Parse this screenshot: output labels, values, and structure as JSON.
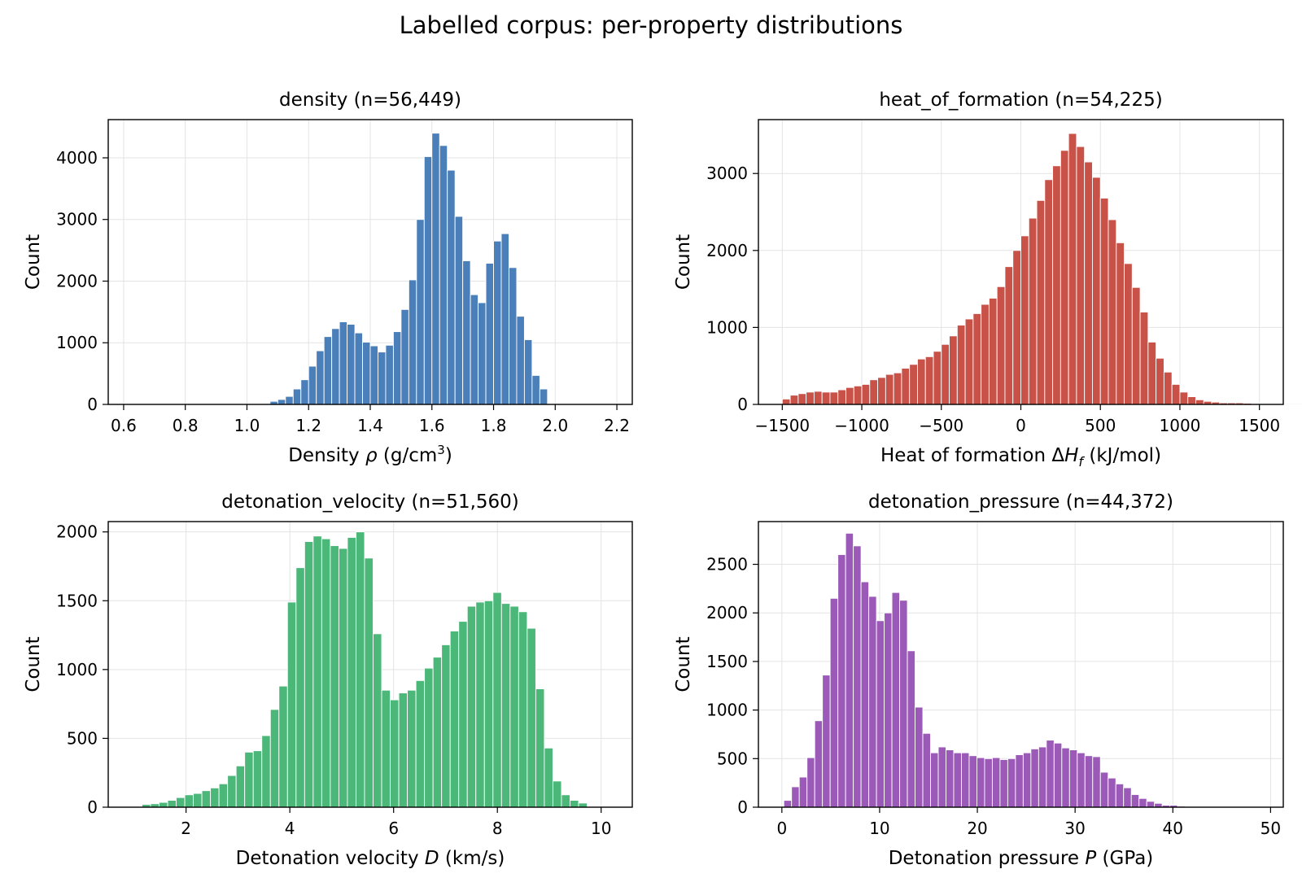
{
  "figure": {
    "title": "Labelled corpus: per-property distributions"
  },
  "chart_data": [
    {
      "type": "bar",
      "title": "density  (n=56,449)",
      "xlabel_parts": [
        "Density ",
        "ρ",
        " (g/cm",
        "3",
        ")"
      ],
      "ylabel": "Count",
      "color": "#4a7fb9",
      "xlim": [
        0.55,
        2.25
      ],
      "ylim": [
        0,
        4620
      ],
      "xticks": [
        0.6,
        0.8,
        1.0,
        1.2,
        1.4,
        1.6,
        1.8,
        2.0,
        2.2
      ],
      "xtick_labels": [
        "0.6",
        "0.8",
        "1.0",
        "1.2",
        "1.4",
        "1.6",
        "1.8",
        "2.0",
        "2.2"
      ],
      "yticks": [
        0,
        1000,
        2000,
        3000,
        4000
      ],
      "ytick_labels": [
        "0",
        "1000",
        "2000",
        "3000",
        "4000"
      ],
      "bins": {
        "start": 1.05,
        "width": 0.025
      },
      "values": [
        10,
        50,
        80,
        130,
        250,
        400,
        620,
        870,
        1100,
        1230,
        1340,
        1300,
        1160,
        1010,
        950,
        850,
        960,
        1180,
        1540,
        2020,
        3000,
        4020,
        4400,
        4200,
        3800,
        3050,
        2330,
        1780,
        1650,
        2290,
        2650,
        2770,
        2220,
        1430,
        1050,
        470,
        250,
        10
      ]
    },
    {
      "type": "bar",
      "title": "heat_of_formation  (n=54,225)",
      "xlabel_parts": [
        "Heat of formation Δ",
        "H",
        "f",
        " (kJ/mol)"
      ],
      "ylabel": "Count",
      "color": "#c85248",
      "xlim": [
        -1650,
        1650
      ],
      "ylim": [
        0,
        3700
      ],
      "xticks": [
        -1500,
        -1000,
        -500,
        0,
        500,
        1000,
        1500
      ],
      "xtick_labels": [
        "−1500",
        "−1000",
        "−500",
        "0",
        "500",
        "1000",
        "1500"
      ],
      "yticks": [
        0,
        1000,
        2000,
        3000
      ],
      "ytick_labels": [
        "0",
        "1000",
        "2000",
        "3000"
      ],
      "bins": {
        "start": -1500,
        "width": 50
      },
      "values": [
        70,
        120,
        140,
        160,
        170,
        160,
        160,
        190,
        220,
        240,
        260,
        320,
        350,
        390,
        410,
        470,
        520,
        590,
        620,
        690,
        780,
        890,
        1030,
        1110,
        1180,
        1300,
        1380,
        1530,
        1790,
        2000,
        2190,
        2420,
        2650,
        2920,
        3100,
        3300,
        3520,
        3350,
        3150,
        2950,
        2680,
        2400,
        2100,
        1830,
        1520,
        1200,
        810,
        600,
        420,
        260,
        160,
        100,
        60,
        40,
        30,
        20,
        20,
        20,
        15,
        10,
        10,
        10,
        10,
        10,
        10,
        10
      ]
    },
    {
      "type": "bar",
      "title": "detonation_velocity  (n=51,560)",
      "xlabel_parts": [
        "Detonation velocity ",
        "D",
        " (km/s)"
      ],
      "ylabel": "Count",
      "color": "#4bb778",
      "xlim": [
        0.5,
        10.6
      ],
      "ylim": [
        0,
        2075
      ],
      "xticks": [
        2,
        4,
        6,
        8,
        10
      ],
      "xtick_labels": [
        "2",
        "4",
        "6",
        "8",
        "10"
      ],
      "yticks": [
        0,
        500,
        1000,
        1500,
        2000
      ],
      "ytick_labels": [
        "0",
        "500",
        "1000",
        "1500",
        "2000"
      ],
      "bins": {
        "start": 1.15,
        "width": 0.165
      },
      "values": [
        20,
        25,
        35,
        50,
        70,
        90,
        100,
        120,
        140,
        170,
        230,
        300,
        400,
        410,
        520,
        710,
        880,
        1490,
        1740,
        1930,
        1970,
        1950,
        1900,
        1880,
        1960,
        2000,
        1810,
        1260,
        850,
        780,
        830,
        850,
        920,
        1010,
        1090,
        1180,
        1280,
        1350,
        1460,
        1490,
        1500,
        1560,
        1480,
        1460,
        1420,
        1300,
        860,
        430,
        190,
        90,
        50,
        30
      ]
    },
    {
      "type": "bar",
      "title": "detonation_pressure  (n=44,372)",
      "xlabel_parts": [
        "Detonation pressure ",
        "P",
        " (GPa)"
      ],
      "ylabel": "Count",
      "color": "#9c5ab8",
      "xlim": [
        -2.4,
        51.3
      ],
      "ylim": [
        0,
        2940
      ],
      "xticks": [
        0,
        10,
        20,
        30,
        40,
        50
      ],
      "xtick_labels": [
        "0",
        "10",
        "20",
        "30",
        "40",
        "50"
      ],
      "yticks": [
        0,
        500,
        1000,
        1500,
        2000,
        2500
      ],
      "ytick_labels": [
        "0",
        "500",
        "1000",
        "1500",
        "2000",
        "2500"
      ],
      "bins": {
        "start": 0.2,
        "width": 0.79
      },
      "values": [
        70,
        210,
        310,
        510,
        890,
        1360,
        2150,
        2600,
        2820,
        2690,
        2320,
        2170,
        1920,
        2000,
        2210,
        2130,
        1610,
        1030,
        760,
        560,
        620,
        590,
        560,
        560,
        530,
        510,
        500,
        510,
        490,
        500,
        540,
        560,
        600,
        620,
        690,
        660,
        610,
        590,
        560,
        530,
        520,
        360,
        300,
        240,
        200,
        130,
        90,
        60,
        40,
        20,
        20,
        10
      ]
    }
  ]
}
